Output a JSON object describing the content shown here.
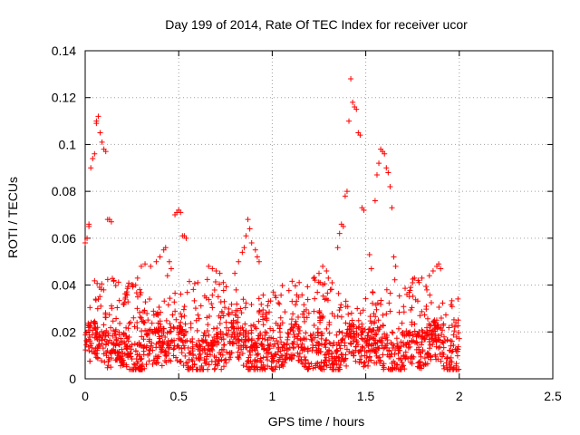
{
  "chart_data": {
    "type": "scatter",
    "title": "Day 199 of 2014, Rate Of TEC Index for receiver ucor",
    "xlabel": "GPS time / hours",
    "ylabel": "ROTI / TECUs",
    "xlim": [
      0,
      2.5
    ],
    "ylim": [
      0,
      0.14
    ],
    "xticks": [
      0,
      0.5,
      1,
      1.5,
      2,
      2.5
    ],
    "xtick_labels": [
      "0",
      "0.5",
      "1",
      "1.5",
      "2",
      "2.5"
    ],
    "yticks": [
      0,
      0.02,
      0.04,
      0.06,
      0.08,
      0.1,
      0.12,
      0.14
    ],
    "ytick_labels": [
      "0",
      "0.02",
      "0.04",
      "0.06",
      "0.08",
      "0.1",
      "0.12",
      "0.14"
    ],
    "grid": true,
    "marker": "+",
    "marker_color": "#ff0000",
    "series": [
      {
        "name": "ROTI",
        "points": [
          [
            0.0,
            0.058
          ],
          [
            0.01,
            0.06
          ],
          [
            0.02,
            0.065
          ],
          [
            0.02,
            0.066
          ],
          [
            0.03,
            0.09
          ],
          [
            0.04,
            0.094
          ],
          [
            0.05,
            0.096
          ],
          [
            0.06,
            0.11
          ],
          [
            0.06,
            0.109
          ],
          [
            0.07,
            0.112
          ],
          [
            0.08,
            0.105
          ],
          [
            0.09,
            0.101
          ],
          [
            0.1,
            0.098
          ],
          [
            0.11,
            0.097
          ],
          [
            0.12,
            0.068
          ],
          [
            0.13,
            0.068
          ],
          [
            0.14,
            0.067
          ],
          [
            0.48,
            0.07
          ],
          [
            0.49,
            0.071
          ],
          [
            0.5,
            0.072
          ],
          [
            0.51,
            0.071
          ],
          [
            0.52,
            0.061
          ],
          [
            0.53,
            0.061
          ],
          [
            0.54,
            0.06
          ],
          [
            0.87,
            0.068
          ],
          [
            0.88,
            0.064
          ],
          [
            0.86,
            0.061
          ],
          [
            1.35,
            0.056
          ],
          [
            1.36,
            0.062
          ],
          [
            1.37,
            0.066
          ],
          [
            1.38,
            0.065
          ],
          [
            1.39,
            0.078
          ],
          [
            1.4,
            0.08
          ],
          [
            1.41,
            0.11
          ],
          [
            1.42,
            0.128
          ],
          [
            1.43,
            0.118
          ],
          [
            1.44,
            0.116
          ],
          [
            1.45,
            0.115
          ],
          [
            1.46,
            0.105
          ],
          [
            1.47,
            0.104
          ],
          [
            1.48,
            0.073
          ],
          [
            1.49,
            0.072
          ],
          [
            1.55,
            0.076
          ],
          [
            1.56,
            0.087
          ],
          [
            1.57,
            0.092
          ],
          [
            1.58,
            0.098
          ],
          [
            1.59,
            0.097
          ],
          [
            1.6,
            0.096
          ],
          [
            1.61,
            0.09
          ],
          [
            1.62,
            0.088
          ],
          [
            1.63,
            0.082
          ],
          [
            1.64,
            0.073
          ],
          [
            1.65,
            0.052
          ],
          [
            1.66,
            0.048
          ],
          [
            1.52,
            0.053
          ],
          [
            1.53,
            0.047
          ],
          [
            0.35,
            0.048
          ],
          [
            0.38,
            0.05
          ],
          [
            0.4,
            0.052
          ],
          [
            0.42,
            0.055
          ],
          [
            0.43,
            0.056
          ],
          [
            0.45,
            0.05
          ],
          [
            0.46,
            0.047
          ],
          [
            0.44,
            0.044
          ],
          [
            0.3,
            0.048
          ],
          [
            0.32,
            0.049
          ],
          [
            0.28,
            0.043
          ],
          [
            0.27,
            0.04
          ],
          [
            0.66,
            0.048
          ],
          [
            0.68,
            0.047
          ],
          [
            0.7,
            0.046
          ],
          [
            0.72,
            0.045
          ],
          [
            0.8,
            0.045
          ],
          [
            0.82,
            0.05
          ],
          [
            0.84,
            0.054
          ],
          [
            0.85,
            0.056
          ],
          [
            0.89,
            0.058
          ],
          [
            0.91,
            0.055
          ],
          [
            0.92,
            0.052
          ],
          [
            0.93,
            0.05
          ],
          [
            1.25,
            0.045
          ],
          [
            1.27,
            0.048
          ],
          [
            1.29,
            0.046
          ],
          [
            1.3,
            0.043
          ],
          [
            1.32,
            0.041
          ],
          [
            1.88,
            0.048
          ],
          [
            1.89,
            0.049
          ],
          [
            1.9,
            0.047
          ],
          [
            1.86,
            0.046
          ],
          [
            1.84,
            0.044
          ],
          [
            1.8,
            0.043
          ],
          [
            1.78,
            0.042
          ],
          [
            1.76,
            0.043
          ],
          [
            1.75,
            0.041
          ],
          [
            1.72,
            0.036
          ],
          [
            1.74,
            0.039
          ]
        ]
      }
    ]
  }
}
